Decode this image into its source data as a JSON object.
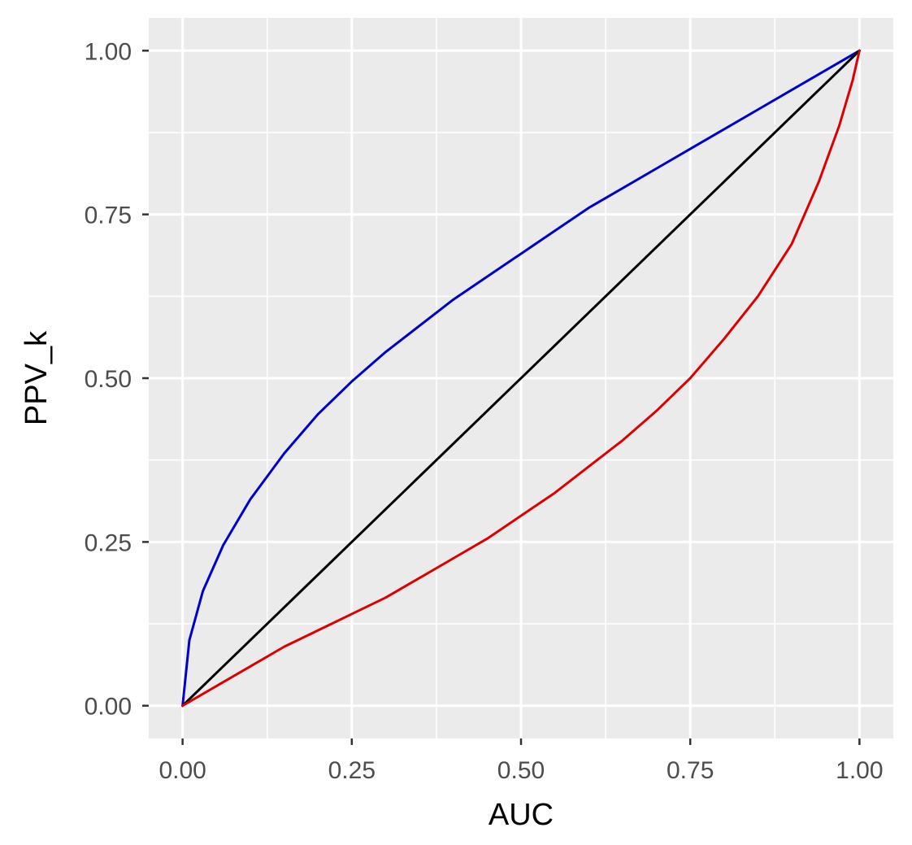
{
  "chart_data": {
    "type": "line",
    "title": "",
    "xlabel": "AUC",
    "ylabel": "PPV_k",
    "xlim": [
      -0.05,
      1.05
    ],
    "ylim": [
      -0.05,
      1.05
    ],
    "x_ticks": [
      0,
      0.25,
      0.5,
      0.75,
      1
    ],
    "x_tick_labels": [
      "0.00",
      "0.25",
      "0.50",
      "0.75",
      "1.00"
    ],
    "y_ticks": [
      0,
      0.25,
      0.5,
      0.75,
      1
    ],
    "y_tick_labels": [
      "0.00",
      "0.25",
      "0.50",
      "0.75",
      "1.00"
    ],
    "grid": true,
    "background": "#ebebeb",
    "series": [
      {
        "color": "#0000cc",
        "x": [
          0,
          0.01,
          0.03,
          0.06,
          0.1,
          0.15,
          0.2,
          0.25,
          0.3,
          0.35,
          0.4,
          0.45,
          0.5,
          0.55,
          0.6,
          0.65,
          0.7,
          0.75,
          0.8,
          0.85,
          0.9,
          0.95,
          1
        ],
        "y": [
          0,
          0.1,
          0.175,
          0.245,
          0.315,
          0.385,
          0.445,
          0.495,
          0.54,
          0.58,
          0.62,
          0.655,
          0.69,
          0.725,
          0.76,
          0.79,
          0.82,
          0.85,
          0.88,
          0.91,
          0.94,
          0.97,
          1
        ]
      },
      {
        "color": "#000000",
        "x": [
          0,
          1
        ],
        "y": [
          0,
          1
        ]
      },
      {
        "color": "#dd0000",
        "x": [
          0,
          0.05,
          0.1,
          0.15,
          0.2,
          0.25,
          0.3,
          0.35,
          0.4,
          0.45,
          0.5,
          0.55,
          0.6,
          0.65,
          0.7,
          0.75,
          0.8,
          0.85,
          0.9,
          0.94,
          0.97,
          0.99,
          1
        ],
        "y": [
          0,
          0.03,
          0.06,
          0.09,
          0.115,
          0.14,
          0.165,
          0.195,
          0.225,
          0.255,
          0.29,
          0.325,
          0.365,
          0.405,
          0.45,
          0.5,
          0.56,
          0.625,
          0.705,
          0.8,
          0.885,
          0.955,
          1
        ]
      }
    ]
  }
}
